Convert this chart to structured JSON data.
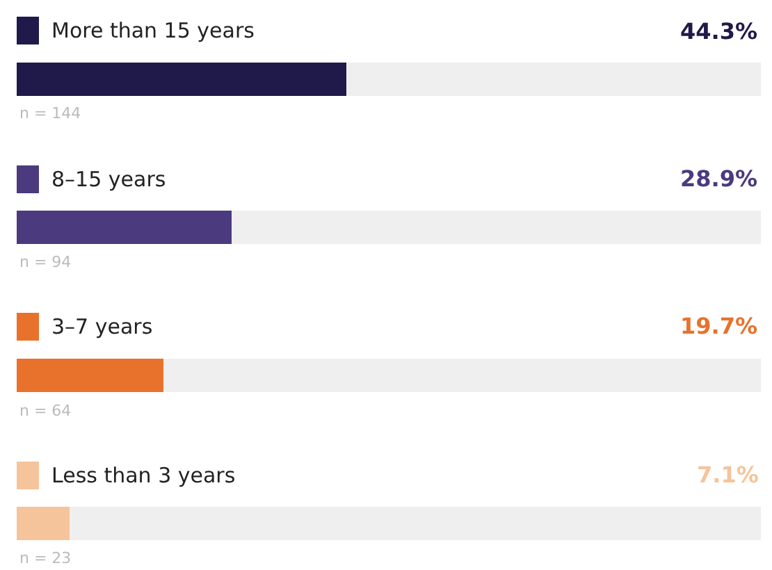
{
  "chart_data": {
    "type": "bar",
    "orientation": "horizontal",
    "categories": [
      "More than 15 years",
      "8–15 years",
      "3–7 years",
      "Less than 3 years"
    ],
    "values": [
      44.3,
      28.9,
      19.7,
      7.1
    ],
    "colors": [
      "#1f1a4a",
      "#4b3a7e",
      "#e8722c",
      "#f5c49b"
    ],
    "value_labels": [
      "44.3%",
      "28.9%",
      "19.7%",
      "7.1%"
    ],
    "annotations": [
      "n = 144",
      "n = 94",
      "n = 64",
      "n = 23"
    ],
    "xlim": [
      0,
      100
    ],
    "tick_labels": false
  }
}
